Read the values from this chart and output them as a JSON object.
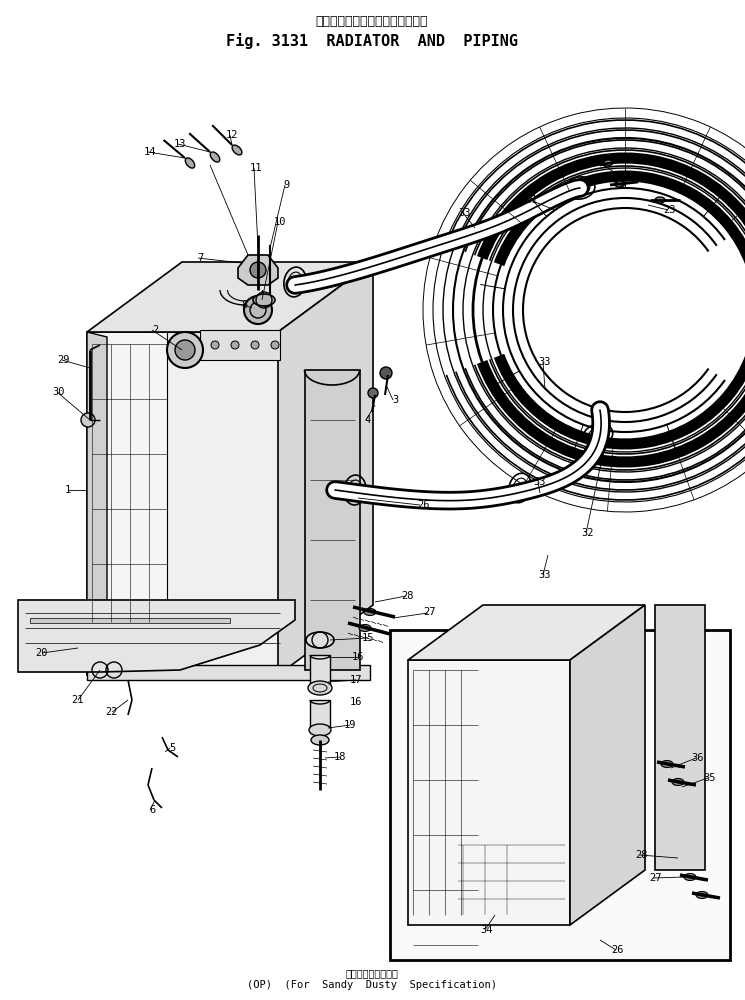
{
  "title_japanese": "ラジエータ　および　パイピング",
  "title_english": "Fig. 3131  RADIATOR  AND  PIPING",
  "footer_japanese": "砂　塵　地　仕　様",
  "footer_english": "(OP)  (For  Sandy  Dusty  Specification)",
  "bg_color": "#ffffff",
  "line_color": "#000000",
  "figsize": [
    7.45,
    10.0
  ],
  "dpi": 100
}
